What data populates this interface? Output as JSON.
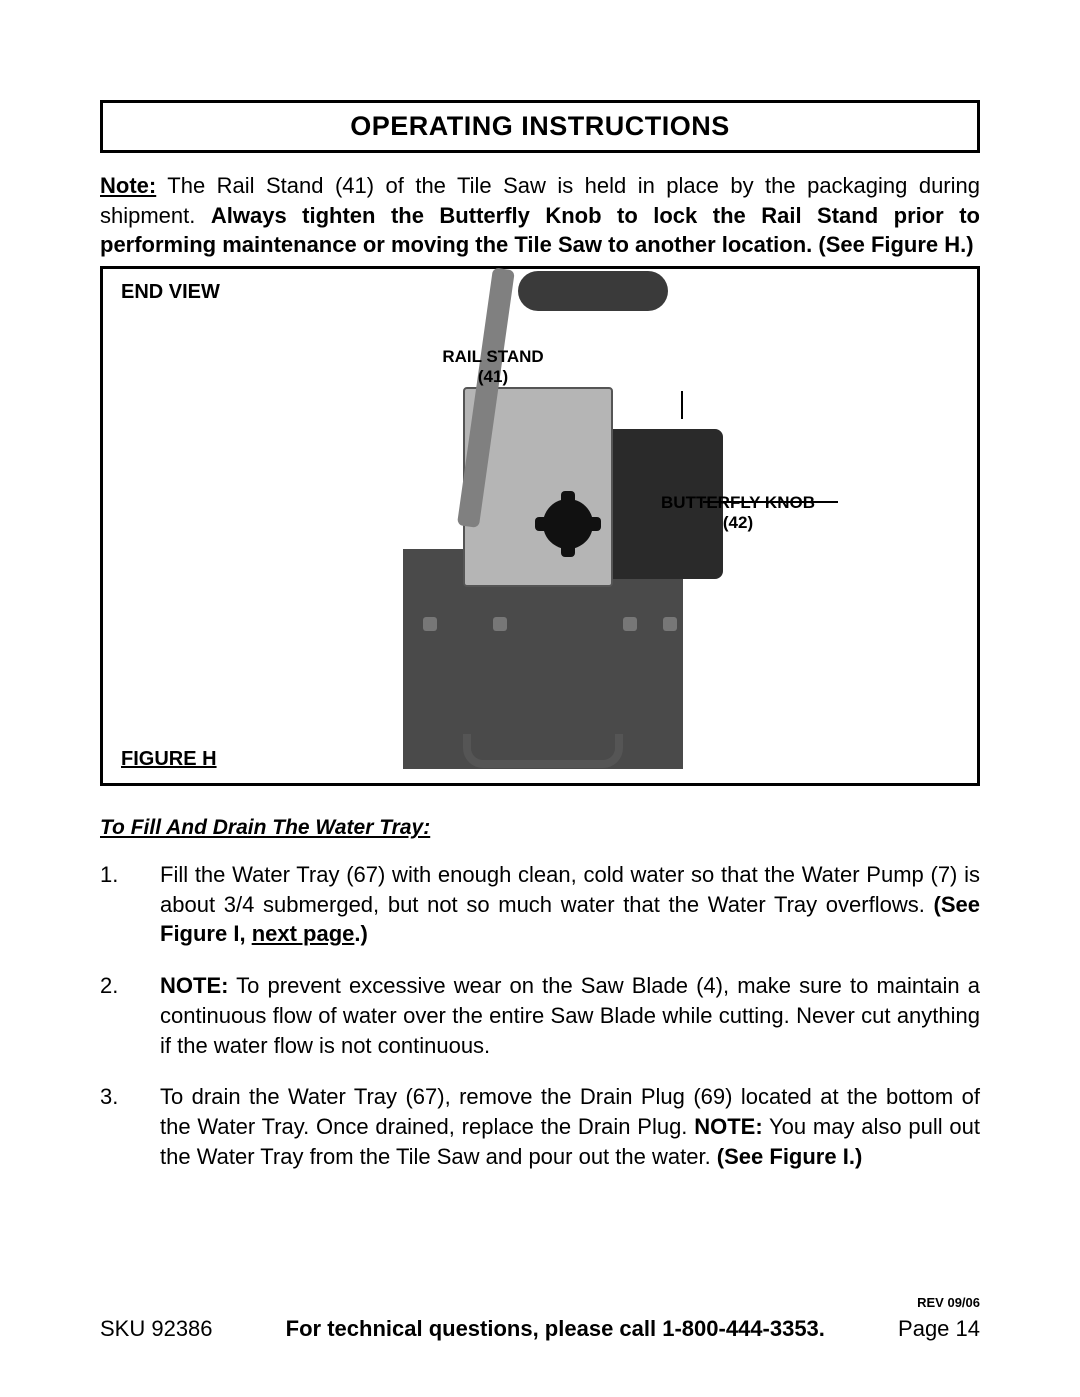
{
  "title": "OPERATING INSTRUCTIONS",
  "note": {
    "label": "Note:",
    "text_before": "The Rail Stand (41) of the Tile Saw is held in place by the packaging during shipment.  ",
    "text_bold": "Always tighten the Butterfly Knob to lock the Rail Stand prior to performing maintenance or moving the Tile Saw to another location. (See Figure H.)"
  },
  "figure": {
    "end_view": "END VIEW",
    "rail_stand": "RAIL STAND (41)",
    "butterfly_knob": "BUTTERFLY KNOB (42)",
    "label": "FIGURE H"
  },
  "subhead": "To Fill And Drain The Water Tray:",
  "steps": [
    {
      "num": "1.",
      "body_plain": "Fill the Water Tray (67) with enough clean, cold water so that the Water Pump (7) is about 3/4 submerged, but not so much water that the Water Tray overflows.  ",
      "bold_a": "(See Figure I, ",
      "link": "next page",
      "bold_b": ".)"
    },
    {
      "num": "2.",
      "bold_lead": "NOTE:",
      "body_plain": " To prevent excessive wear on the Saw Blade (4), make sure to maintain a continuous flow of water over the entire Saw Blade while cutting.  Never cut anything if the water flow is not continuous."
    },
    {
      "num": "3.",
      "body_plain": "To drain the Water Tray (67), remove the Drain Plug (69) located at the bottom of the Water Tray.  Once drained, replace the Drain Plug.  ",
      "bold_lead2": "NOTE:",
      "body_plain2": " You may also pull out the Water Tray from the Tile Saw and pour out the water.  ",
      "bold_tail": "(See Figure I.)"
    }
  ],
  "footer": {
    "rev": "REV 09/06",
    "sku": "SKU 92386",
    "center": "For technical questions, please call 1-800-444-3353.",
    "page": "Page 14"
  },
  "colors": {
    "text": "#000000",
    "bg": "#ffffff",
    "machine_dark": "#4a4a4a",
    "machine_plate": "#b5b5b5"
  }
}
